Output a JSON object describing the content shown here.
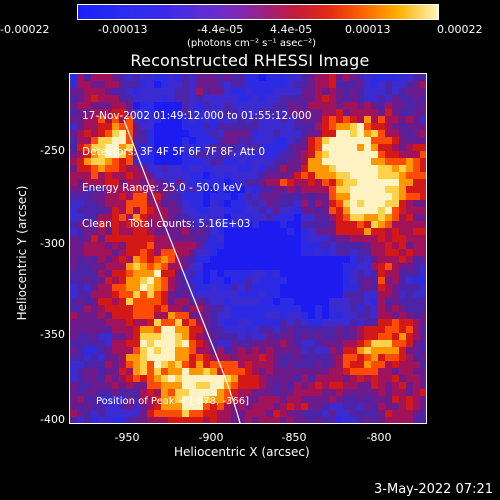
{
  "colorbar": {
    "ticks": [
      "-0.00022",
      "-0.00013",
      "-4.4e-05",
      "4.4e-05",
      "0.00013",
      "0.00022"
    ],
    "units": "(photons cm⁻² s⁻¹ asec⁻²)"
  },
  "plot": {
    "title": "Reconstructed RHESSI Image",
    "overlay": [
      "17-Nov-2002 01:49:12.000 to 01:55:12.000",
      "Detectors: 3F 4F 5F 6F 7F 8F, Att 0",
      "Energy Range: 25.0 - 50.0 keV",
      "Clean     Total counts: 5.16E+03"
    ],
    "peak_text": "Position of Peak = [-878, -366]",
    "x_label": "Heliocentric X (arcsec)",
    "y_label": "Heliocentric Y (arcsec)",
    "x_ticks": [
      "-950",
      "-900",
      "-850",
      "-800"
    ],
    "y_ticks": [
      "-250",
      "-300",
      "-350",
      "-400"
    ]
  },
  "footer": {
    "timestamp": "3-May-2022 07:21"
  },
  "colors": {
    "background": "#000000",
    "axis": "#ffffff",
    "cool": "#1b1ff5",
    "warm": "#ff6a00",
    "hot": "#fff4b8"
  }
}
